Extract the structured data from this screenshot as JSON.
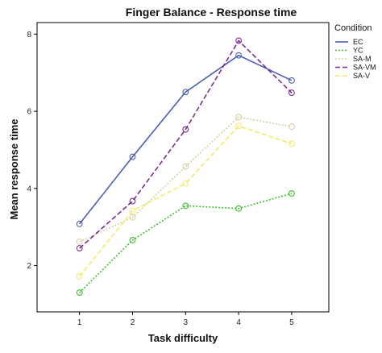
{
  "chart_data": {
    "type": "line",
    "title": "Finger Balance - Response time",
    "xlabel": "Task difficulty",
    "ylabel": "Mean response time",
    "x": [
      1,
      2,
      3,
      4,
      5
    ],
    "xlim": [
      0.2,
      5.7
    ],
    "ylim": [
      0.8,
      8.3
    ],
    "yticks": [
      2,
      4,
      6,
      8
    ],
    "grid": false,
    "legend_title": "Condition",
    "legend_position": "right",
    "series": [
      {
        "name": "EC",
        "color": "#4a5fb0",
        "dash": "",
        "values": [
          3.08,
          4.82,
          6.5,
          7.45,
          6.8
        ]
      },
      {
        "name": "YC",
        "color": "#3cbf2a",
        "dash": "2,2",
        "values": [
          1.3,
          2.66,
          3.55,
          3.48,
          3.87
        ]
      },
      {
        "name": "SA-M",
        "color": "#d6d0a6",
        "dash": "2,2",
        "values": [
          2.62,
          3.25,
          4.57,
          5.85,
          5.6
        ]
      },
      {
        "name": "SA-VM",
        "color": "#7a2e8e",
        "dash": "6,3",
        "values": [
          2.45,
          3.67,
          5.53,
          7.83,
          6.48
        ]
      },
      {
        "name": "SA-V",
        "color": "#f2ec6c",
        "dash": "6,3",
        "values": [
          1.72,
          3.42,
          4.13,
          5.62,
          5.16
        ]
      }
    ]
  }
}
